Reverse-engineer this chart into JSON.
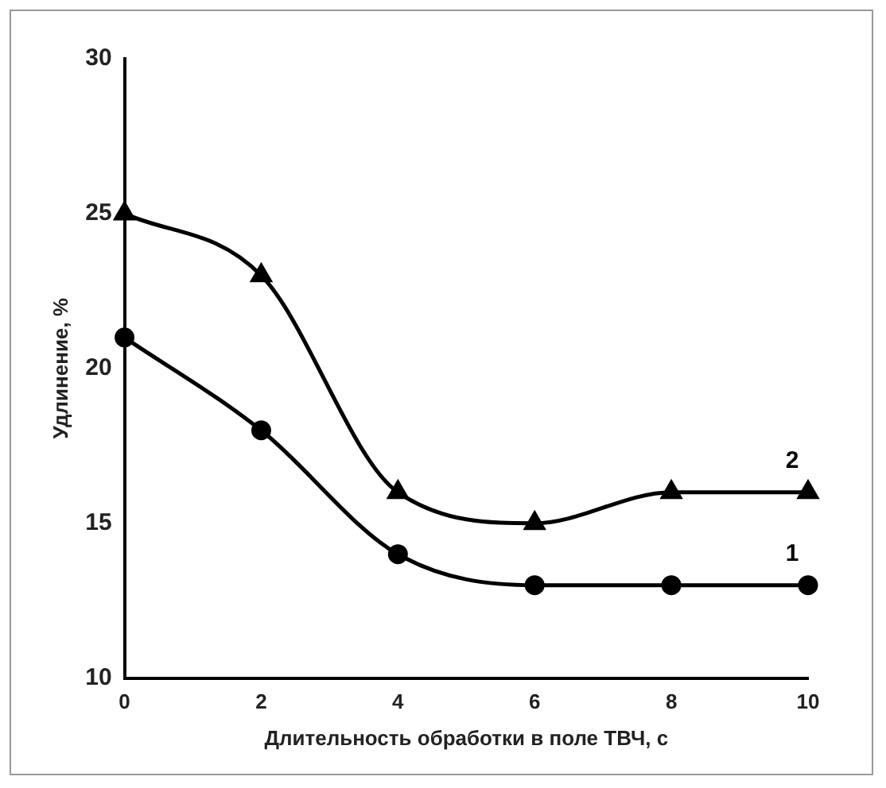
{
  "chart_data": {
    "type": "line",
    "xlabel": "Длительность обработки в поле ТВЧ, с",
    "ylabel": "Удлинение, %",
    "x": [
      0,
      2,
      4,
      6,
      8,
      10
    ],
    "series": [
      {
        "name": "1",
        "color": "#000000",
        "marker": "circle",
        "values": [
          21,
          18,
          14,
          13,
          13,
          13
        ]
      },
      {
        "name": "2",
        "color": "#000000",
        "marker": "triangle",
        "values": [
          25,
          23,
          16,
          15,
          16,
          16
        ]
      }
    ],
    "xlim": [
      0,
      10
    ],
    "xticks": [
      0,
      2,
      4,
      6,
      8,
      10
    ],
    "ylim": [
      10,
      30
    ],
    "yticks": [
      10,
      15,
      20,
      25,
      30
    ],
    "grid": false,
    "legend": false,
    "line_style": "solid"
  }
}
